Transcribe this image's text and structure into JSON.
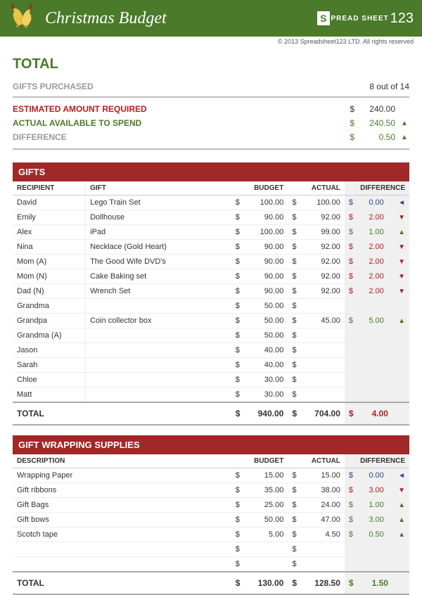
{
  "header": {
    "title": "Christmas Budget",
    "logo_prefix": "S",
    "logo_text": "PREAD\nSHEET",
    "logo_num": "123",
    "copyright": "© 2013 Spreadsheet123 LTD. All rights reserved"
  },
  "summary": {
    "total_label": "TOTAL",
    "gifts_purchased_label": "GIFTS PURCHASED",
    "gifts_purchased_value": "8 out of 14",
    "est_label": "ESTIMATED AMOUNT REQUIRED",
    "est_cur": "$",
    "est_value": "240.00",
    "actual_label": "ACTUAL AVAILABLE TO SPEND",
    "actual_cur": "$",
    "actual_value": "240.50",
    "actual_arrow": "▲",
    "diff_label": "DIFFERENCE",
    "diff_cur": "$",
    "diff_value": "0.50",
    "diff_arrow": "▲"
  },
  "gifts": {
    "section_title": "GIFTS",
    "cols": {
      "recipient": "RECIPIENT",
      "gift": "GIFT",
      "budget": "BUDGET",
      "actual": "ACTUAL",
      "diff": "DIFFERENCE"
    },
    "rows": [
      {
        "recipient": "David",
        "gift": "Lego Train Set",
        "budget": "100.00",
        "actual": "100.00",
        "diff": "0.00",
        "diff_type": "navy",
        "arrow": "◄"
      },
      {
        "recipient": "Emily",
        "gift": "Dollhouse",
        "budget": "90.00",
        "actual": "92.00",
        "diff": "2.00",
        "diff_type": "red",
        "arrow": "▼"
      },
      {
        "recipient": "Alex",
        "gift": "iPad",
        "budget": "100.00",
        "actual": "99.00",
        "diff": "1.00",
        "diff_type": "green",
        "arrow": "▲"
      },
      {
        "recipient": "Nina",
        "gift": "Necklace (Gold Heart)",
        "budget": "90.00",
        "actual": "92.00",
        "diff": "2.00",
        "diff_type": "red",
        "arrow": "▼"
      },
      {
        "recipient": "Mom (A)",
        "gift": "The Good Wife DVD's",
        "budget": "90.00",
        "actual": "92.00",
        "diff": "2.00",
        "diff_type": "red",
        "arrow": "▼"
      },
      {
        "recipient": "Mom (N)",
        "gift": "Cake Baking set",
        "budget": "90.00",
        "actual": "92.00",
        "diff": "2.00",
        "diff_type": "red",
        "arrow": "▼"
      },
      {
        "recipient": "Dad (N)",
        "gift": "Wrench Set",
        "budget": "90.00",
        "actual": "92.00",
        "diff": "2.00",
        "diff_type": "red",
        "arrow": "▼"
      },
      {
        "recipient": "Grandma",
        "gift": "",
        "budget": "50.00",
        "actual": "",
        "diff": "",
        "diff_type": "",
        "arrow": ""
      },
      {
        "recipient": "Grandpa",
        "gift": "Coin collector box",
        "budget": "50.00",
        "actual": "45.00",
        "diff": "5.00",
        "diff_type": "green",
        "arrow": "▲"
      },
      {
        "recipient": "Grandma (A)",
        "gift": "",
        "budget": "50.00",
        "actual": "",
        "diff": "",
        "diff_type": "",
        "arrow": ""
      },
      {
        "recipient": "Jason",
        "gift": "",
        "budget": "40.00",
        "actual": "",
        "diff": "",
        "diff_type": "",
        "arrow": ""
      },
      {
        "recipient": "Sarah",
        "gift": "",
        "budget": "40.00",
        "actual": "",
        "diff": "",
        "diff_type": "",
        "arrow": ""
      },
      {
        "recipient": "Chloe",
        "gift": "",
        "budget": "30.00",
        "actual": "",
        "diff": "",
        "diff_type": "",
        "arrow": ""
      },
      {
        "recipient": "Matt",
        "gift": "",
        "budget": "30.00",
        "actual": "",
        "diff": "",
        "diff_type": "",
        "arrow": ""
      }
    ],
    "total": {
      "label": "TOTAL",
      "budget": "940.00",
      "actual": "704.00",
      "diff": "4.00",
      "diff_type": "red"
    }
  },
  "wrapping": {
    "section_title": "GIFT WRAPPING SUPPLIES",
    "cols": {
      "desc": "DESCRIPTION",
      "budget": "BUDGET",
      "actual": "ACTUAL",
      "diff": "DIFFERENCE"
    },
    "rows": [
      {
        "desc": "Wrapping Paper",
        "budget": "15.00",
        "actual": "15.00",
        "diff": "0.00",
        "diff_type": "navy",
        "arrow": "◄"
      },
      {
        "desc": "Gift ribbons",
        "budget": "35.00",
        "actual": "38.00",
        "diff": "3.00",
        "diff_type": "red",
        "arrow": "▼"
      },
      {
        "desc": "Gift Bags",
        "budget": "25.00",
        "actual": "24.00",
        "diff": "1.00",
        "diff_type": "green",
        "arrow": "▲"
      },
      {
        "desc": "Gift bows",
        "budget": "50.00",
        "actual": "47.00",
        "diff": "3.00",
        "diff_type": "green",
        "arrow": "▲"
      },
      {
        "desc": "Scotch tape",
        "budget": "5.00",
        "actual": "4.50",
        "diff": "0.50",
        "diff_type": "green",
        "arrow": "▲"
      },
      {
        "desc": "",
        "budget": "",
        "actual": "",
        "diff": "",
        "diff_type": "",
        "arrow": ""
      },
      {
        "desc": "",
        "budget": "",
        "actual": "",
        "diff": "",
        "diff_type": "",
        "arrow": ""
      }
    ],
    "total": {
      "label": "TOTAL",
      "budget": "130.00",
      "actual": "128.50",
      "diff": "1.50",
      "diff_type": "green"
    }
  },
  "colors": {
    "header_bg": "#4a7a2a",
    "section_bg": "#a02828",
    "red": "#b02020",
    "green": "#4a7a2a",
    "navy": "#2a4a8a",
    "grey": "#999999",
    "diff_bg": "#f0f0f0"
  }
}
